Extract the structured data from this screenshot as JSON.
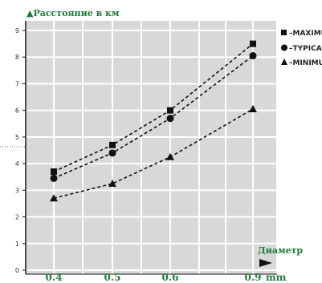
{
  "chart_data": {
    "type": "line",
    "ylabel": "▲Расстояние в км",
    "xlabel": "Диаметр",
    "xunit": "mm",
    "categories": [
      "0.4",
      "0.5",
      "0.6",
      "0.9"
    ],
    "ylim": [
      0,
      9
    ],
    "yticks": [
      "0",
      "1",
      "2",
      "3",
      "4",
      "5",
      "6",
      "7",
      "8",
      "9"
    ],
    "grid": true,
    "legend_position": "right",
    "series": [
      {
        "name": "MAXIMUM",
        "marker": "square",
        "values": [
          3.7,
          4.7,
          6.0,
          8.5
        ]
      },
      {
        "name": "TYPICAL",
        "marker": "circle",
        "values": [
          3.45,
          4.4,
          5.7,
          8.05
        ]
      },
      {
        "name": "MINIMUM",
        "marker": "triangle",
        "values": [
          2.7,
          3.25,
          4.25,
          6.05
        ]
      }
    ],
    "legend_labels": [
      "■–MAXIMUM",
      "●–TYPICAL",
      "▲–MINIMUM"
    ],
    "colors": {
      "plot_background": "#d8d8d8",
      "grid": "#ffffff",
      "line": "#111111",
      "label": "#1f7a3a"
    }
  }
}
